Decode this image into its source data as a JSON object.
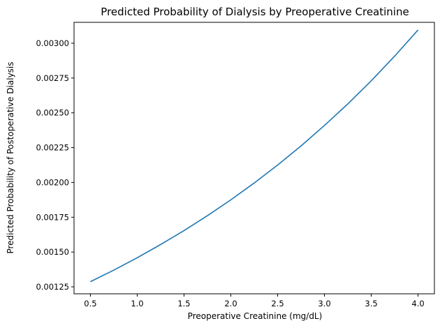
{
  "chart_data": {
    "type": "line",
    "title": "Predicted Probability of Dialysis by Preoperative Creatinine",
    "xlabel": "Preoperative Creatinine (mg/dL)",
    "ylabel": "Predicted Probability of Postoperative Dialysis",
    "xlim": [
      0.325,
      4.175
    ],
    "ylim": [
      0.0012,
      0.00315
    ],
    "xticks": [
      0.5,
      1.0,
      1.5,
      2.0,
      2.5,
      3.0,
      3.5,
      4.0
    ],
    "xtick_labels": [
      "0.5",
      "1.0",
      "1.5",
      "2.0",
      "2.5",
      "3.0",
      "3.5",
      "4.0"
    ],
    "yticks": [
      0.00125,
      0.0015,
      0.00175,
      0.002,
      0.00225,
      0.0025,
      0.00275,
      0.003
    ],
    "ytick_labels": [
      "0.00125",
      "0.00150",
      "0.00175",
      "0.00200",
      "0.00225",
      "0.00250",
      "0.00275",
      "0.00300"
    ],
    "grid": false,
    "line_color": "#1f77b4",
    "series": [
      {
        "x": [
          0.5,
          0.75,
          1.0,
          1.25,
          1.5,
          1.75,
          2.0,
          2.25,
          2.5,
          2.75,
          3.0,
          3.25,
          3.5,
          3.75,
          4.0
        ],
        "y": [
          0.001287,
          0.00137,
          0.001459,
          0.001554,
          0.001654,
          0.001761,
          0.001875,
          0.001996,
          0.002125,
          0.002262,
          0.002409,
          0.002564,
          0.00273,
          0.002907,
          0.003095
        ]
      }
    ]
  }
}
